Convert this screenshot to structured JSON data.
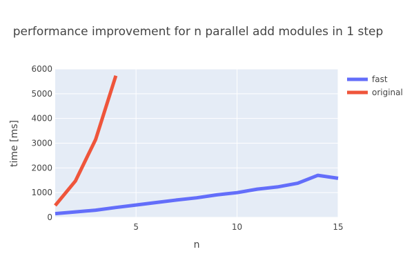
{
  "chart_data": {
    "type": "line",
    "title": "performance improvement for n parallel add modules in 1 step",
    "xlabel": "n",
    "ylabel": "time [ms]",
    "xlim": [
      1,
      15
    ],
    "ylim": [
      0,
      6000
    ],
    "xticks": [
      5,
      10,
      15
    ],
    "yticks": [
      0,
      1000,
      2000,
      3000,
      4000,
      5000,
      6000
    ],
    "grid": true,
    "legend_position": "top-right",
    "background": "#e5ecf6",
    "series": [
      {
        "name": "fast",
        "color": "#636efa",
        "x": [
          1,
          2,
          3,
          4,
          5,
          6,
          7,
          8,
          9,
          10,
          11,
          12,
          13,
          14,
          15
        ],
        "y": [
          150,
          220,
          290,
          400,
          500,
          600,
          700,
          790,
          910,
          1000,
          1140,
          1230,
          1380,
          1700,
          1580
        ]
      },
      {
        "name": "original",
        "color": "#ef553b",
        "x": [
          1,
          2,
          3,
          4
        ],
        "y": [
          480,
          1470,
          3150,
          5730
        ]
      }
    ]
  }
}
